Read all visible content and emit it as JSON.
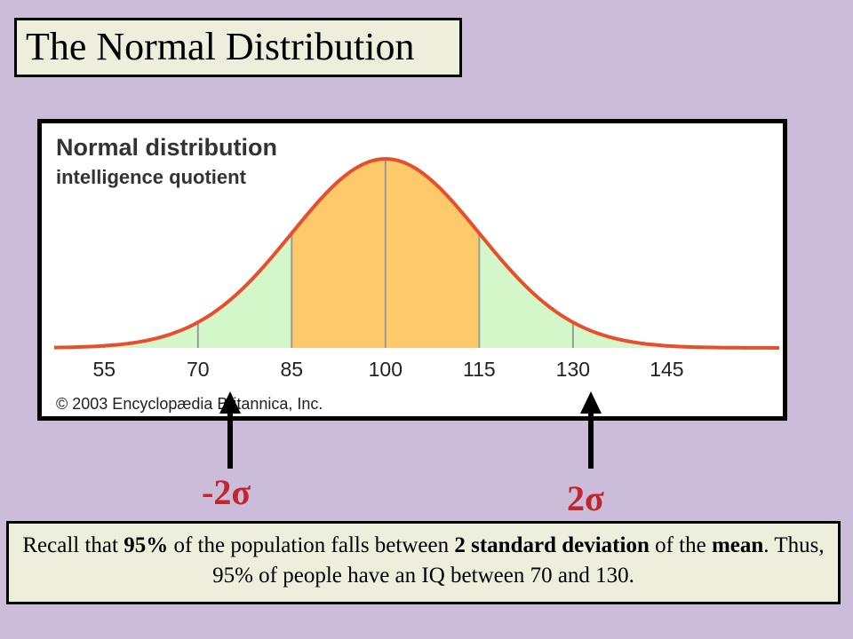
{
  "slide": {
    "title": "The Normal Distribution",
    "arrows": {
      "left_label": "-2σ",
      "right_label": "2σ"
    },
    "caption": {
      "p1": "Recall that ",
      "b1": "95%",
      "p2": " of the population falls between ",
      "b2": "2 standard deviation",
      "p3": " of the ",
      "b3": "mean",
      "p4": ". Thus, 95% of people have an IQ between 70 and 130."
    }
  },
  "chart_data": {
    "type": "area",
    "title": "Normal distribution",
    "subtitle": "intelligence quotient",
    "credit": "© 2003 Encyclopædia Britannica, Inc.",
    "distribution": {
      "mean": 100,
      "sd": 15
    },
    "xlim": [
      47,
      163
    ],
    "x_ticks": [
      55,
      70,
      85,
      100,
      115,
      130,
      145
    ],
    "bands": [
      {
        "from": 85,
        "to": 115,
        "color": "#fdc96a"
      },
      {
        "from": 70,
        "to": 85,
        "color": "#d3f7c8"
      },
      {
        "from": 115,
        "to": 130,
        "color": "#d3f7c8"
      },
      {
        "from": 47,
        "to": 70,
        "color": "#d3f7c8"
      },
      {
        "from": 130,
        "to": 163,
        "color": "#d3f7c8"
      }
    ],
    "curve_color": "#e84e2c",
    "gridline_color": "#9a9a9a"
  }
}
